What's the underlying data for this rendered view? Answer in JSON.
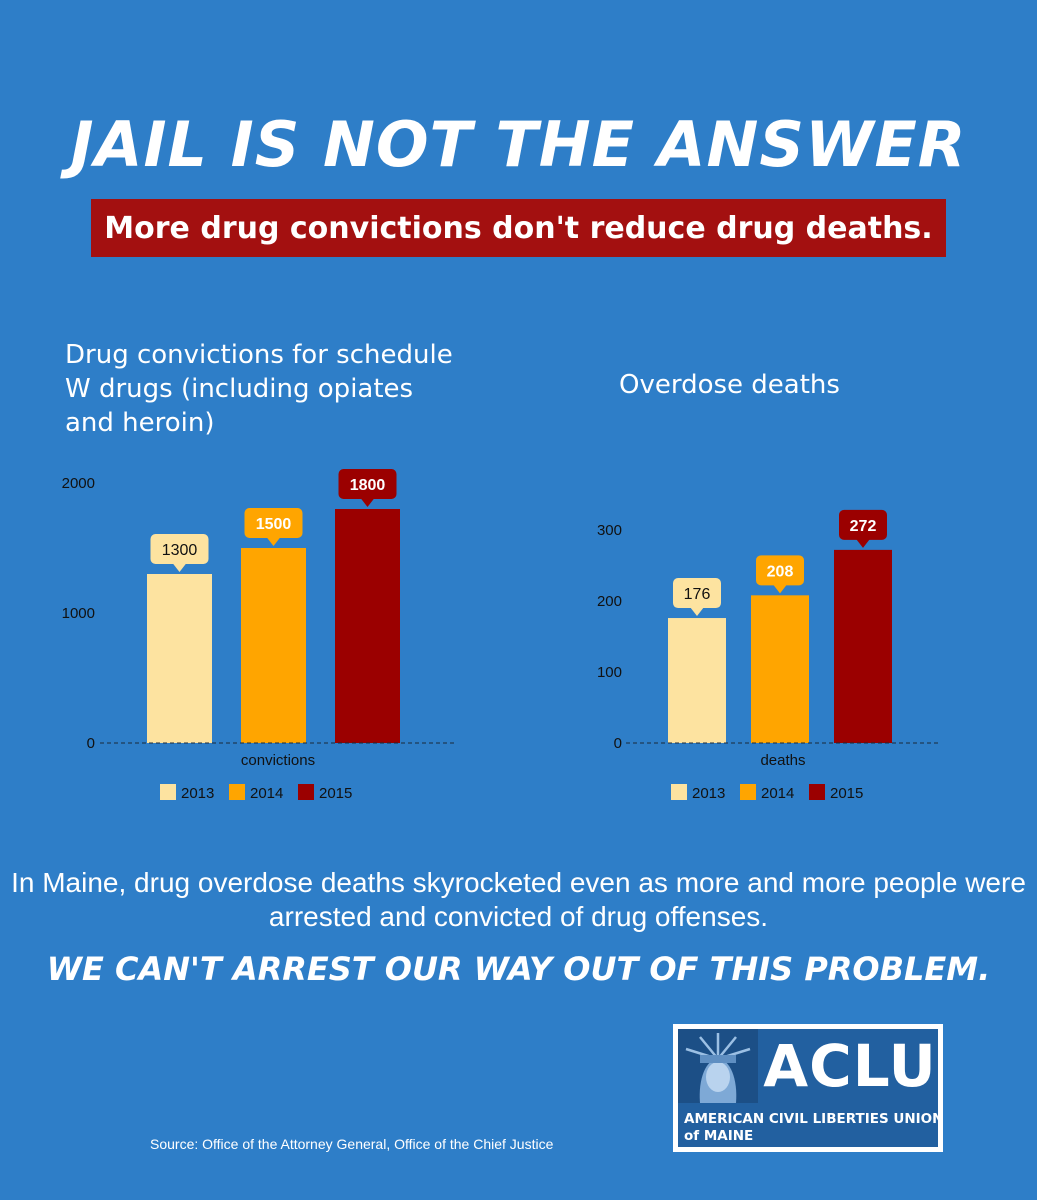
{
  "headline": "JAIL IS NOT THE ANSWER",
  "subheadline": "More drug convictions don't reduce drug deaths.",
  "body_text": "In Maine, drug overdose deaths skyrocketed even as more and more people were arrested and convicted of drug offenses.",
  "tagline": "WE CAN'T ARREST OUR WAY OUT OF THIS PROBLEM.",
  "source": "Source: Office of the Attorney General, Office of the Chief Justice",
  "logo": {
    "wordmark": "ACLU",
    "line1": "AMERICAN CIVIL LIBERTIES UNION",
    "line2": "of MAINE",
    "icon": "statue-of-liberty-icon"
  },
  "colors": {
    "background": "#2e7ec8",
    "banner": "#a31010",
    "2013": "#fde3a0",
    "2014": "#ffa500",
    "2015": "#9b0000"
  },
  "chart_data": [
    {
      "type": "bar",
      "title": "Drug convictions for schedule W drugs (including opiates and heroin)",
      "xlabel": "convictions",
      "categories": [
        "convictions"
      ],
      "series": [
        {
          "name": "2013",
          "values": [
            1300
          ],
          "color": "#fde3a0"
        },
        {
          "name": "2014",
          "values": [
            1500
          ],
          "color": "#ffa500"
        },
        {
          "name": "2015",
          "values": [
            1800
          ],
          "color": "#9b0000"
        }
      ],
      "yticks": [
        0,
        1000,
        2000
      ],
      "ylim": [
        0,
        2000
      ],
      "legend": "bottom",
      "data_labels": true
    },
    {
      "type": "bar",
      "title": "Overdose deaths",
      "xlabel": "deaths",
      "categories": [
        "deaths"
      ],
      "series": [
        {
          "name": "2013",
          "values": [
            176
          ],
          "color": "#fde3a0"
        },
        {
          "name": "2014",
          "values": [
            208
          ],
          "color": "#ffa500"
        },
        {
          "name": "2015",
          "values": [
            272
          ],
          "color": "#9b0000"
        }
      ],
      "yticks": [
        0,
        100,
        200,
        300
      ],
      "ylim": [
        0,
        300
      ],
      "legend": "bottom",
      "data_labels": true
    }
  ]
}
